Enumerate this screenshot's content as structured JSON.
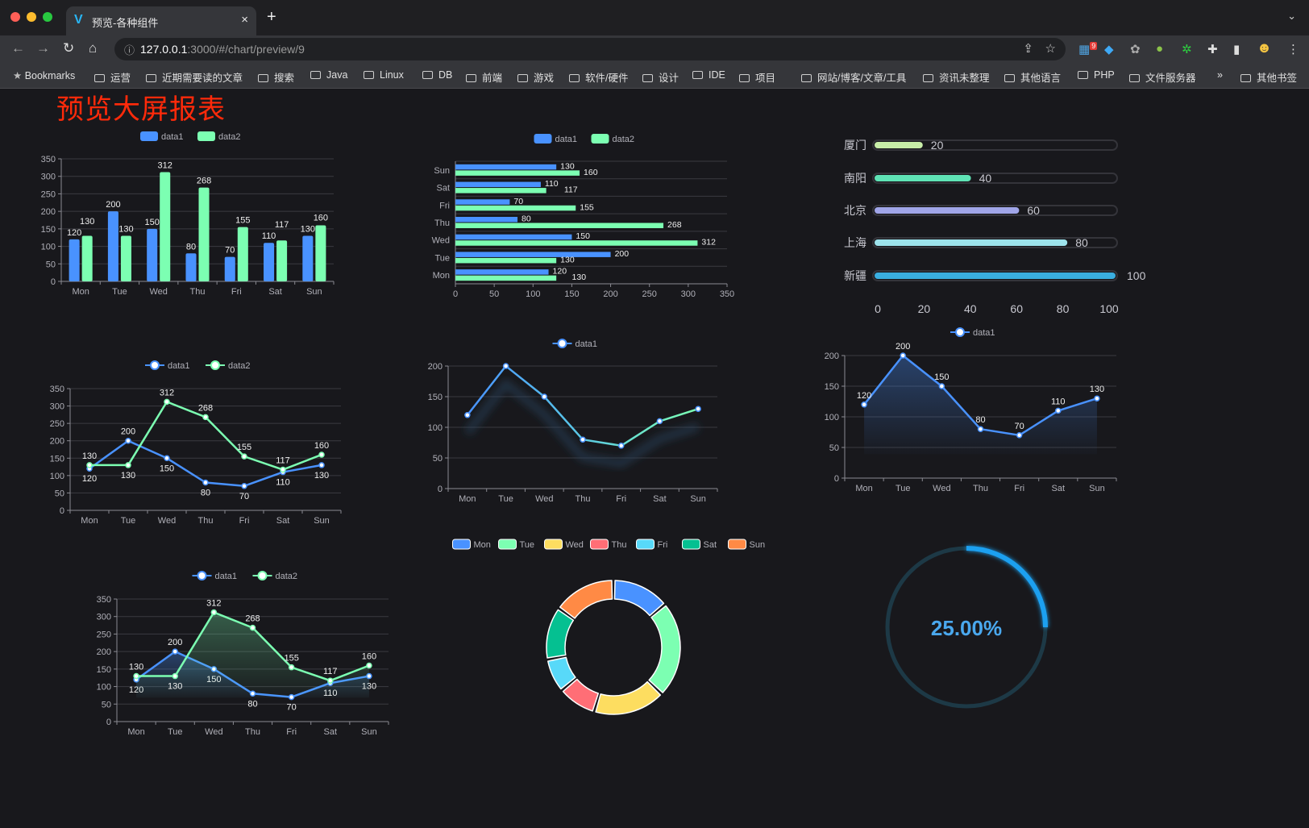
{
  "browser": {
    "tab_title": "预览-各种组件",
    "tab_close": "×",
    "new_tab": "+",
    "tab_menu": "⌄",
    "url_host": "127.0.0.1",
    "url_rest": ":3000/#/chart/preview/9",
    "extension_badge": "9",
    "bookmarks": [
      "Bookmarks",
      "运营",
      "近期需要读的文章",
      "搜索",
      "Java",
      "Linux",
      "DB",
      "前端",
      "游戏",
      "软件/硬件",
      "设计",
      "IDE",
      "项目",
      "网站/博客/文章/工具",
      "资讯未整理",
      "其他语言",
      "PHP",
      "文件服务器"
    ],
    "bookmarks_overflow": "»",
    "other_bookmarks": "其他书签"
  },
  "page": {
    "title": "预览大屏报表",
    "title_color": "#ff2a0a"
  },
  "colors": {
    "data1": "#4992ff",
    "data2": "#7cffb2",
    "grid": "#3a3a40",
    "axis_text": "#b0b0b8",
    "label": "#eeeeee"
  },
  "chart_data": [
    {
      "type": "bar",
      "legend": [
        "data1",
        "data2"
      ],
      "legend_position": "top",
      "categories": [
        "Mon",
        "Tue",
        "Wed",
        "Thu",
        "Fri",
        "Sat",
        "Sun"
      ],
      "series": [
        {
          "name": "data1",
          "values": [
            120,
            200,
            150,
            80,
            70,
            110,
            130
          ]
        },
        {
          "name": "data2",
          "values": [
            130,
            130,
            312,
            268,
            155,
            117,
            160
          ]
        }
      ],
      "ylim": [
        0,
        350
      ],
      "yticks": [
        "0",
        "50",
        "100",
        "150",
        "200",
        "250",
        "300",
        "350"
      ],
      "grid": true,
      "data_labels": true
    },
    {
      "type": "bar",
      "orientation": "horizontal",
      "legend": [
        "data1",
        "data2"
      ],
      "legend_position": "top",
      "categories": [
        "Mon",
        "Tue",
        "Wed",
        "Thu",
        "Fri",
        "Sat",
        "Sun"
      ],
      "series": [
        {
          "name": "data1",
          "values": [
            120,
            200,
            150,
            80,
            70,
            110,
            130
          ]
        },
        {
          "name": "data2",
          "values": [
            130,
            130,
            312,
            268,
            155,
            117,
            160
          ]
        }
      ],
      "xlim": [
        0,
        350
      ],
      "xticks": [
        "0",
        "50",
        "100",
        "150",
        "200",
        "250",
        "300",
        "350"
      ],
      "grid": true,
      "data_labels": true
    },
    {
      "type": "bar",
      "orientation": "horizontal",
      "style": "progress",
      "categories": [
        "厦门",
        "南阳",
        "北京",
        "上海",
        "新疆"
      ],
      "values": [
        20,
        40,
        60,
        80,
        100
      ],
      "colors": [
        "#c8eea8",
        "#5fe3b5",
        "#a0a5e8",
        "#9de3ec",
        "#3aaee0"
      ],
      "xlim": [
        0,
        100
      ],
      "xticks": [
        "0",
        "20",
        "40",
        "60",
        "80",
        "100"
      ]
    },
    {
      "type": "line",
      "legend": [
        "data1",
        "data2"
      ],
      "legend_position": "top",
      "categories": [
        "Mon",
        "Tue",
        "Wed",
        "Thu",
        "Fri",
        "Sat",
        "Sun"
      ],
      "series": [
        {
          "name": "data1",
          "values": [
            120,
            200,
            150,
            80,
            70,
            110,
            130
          ]
        },
        {
          "name": "data2",
          "values": [
            130,
            130,
            312,
            268,
            155,
            117,
            160
          ]
        }
      ],
      "ylim": [
        0,
        350
      ],
      "yticks": [
        "0",
        "50",
        "100",
        "150",
        "200",
        "250",
        "300",
        "350"
      ],
      "grid": true,
      "data_labels": true
    },
    {
      "type": "line",
      "legend": [
        "data1"
      ],
      "legend_position": "top",
      "categories": [
        "Mon",
        "Tue",
        "Wed",
        "Thu",
        "Fri",
        "Sat",
        "Sun"
      ],
      "series": [
        {
          "name": "data1",
          "values": [
            120,
            200,
            150,
            80,
            70,
            110,
            130
          ]
        }
      ],
      "gradient": [
        "#4992ff",
        "#7cffb2"
      ],
      "shadow": true,
      "ylim": [
        0,
        200
      ],
      "yticks": [
        "0",
        "50",
        "100",
        "150",
        "200"
      ],
      "grid": true,
      "data_labels": false
    },
    {
      "type": "area",
      "legend": [
        "data1"
      ],
      "legend_position": "top",
      "categories": [
        "Mon",
        "Tue",
        "Wed",
        "Thu",
        "Fri",
        "Sat",
        "Sun"
      ],
      "series": [
        {
          "name": "data1",
          "values": [
            120,
            200,
            150,
            80,
            70,
            110,
            130
          ]
        }
      ],
      "ylim": [
        0,
        200
      ],
      "yticks": [
        "0",
        "50",
        "100",
        "150",
        "200"
      ],
      "grid": true,
      "data_labels": true
    },
    {
      "type": "area",
      "legend": [
        "data1",
        "data2"
      ],
      "legend_position": "top",
      "categories": [
        "Mon",
        "Tue",
        "Wed",
        "Thu",
        "Fri",
        "Sat",
        "Sun"
      ],
      "series": [
        {
          "name": "data1",
          "values": [
            120,
            200,
            150,
            80,
            70,
            110,
            130
          ]
        },
        {
          "name": "data2",
          "values": [
            130,
            130,
            312,
            268,
            155,
            117,
            160
          ]
        }
      ],
      "ylim": [
        0,
        350
      ],
      "yticks": [
        "0",
        "50",
        "100",
        "150",
        "200",
        "250",
        "300",
        "350"
      ],
      "grid": true,
      "data_labels": true
    },
    {
      "type": "pie",
      "style": "donut",
      "legend": [
        "Mon",
        "Tue",
        "Wed",
        "Thu",
        "Fri",
        "Sat",
        "Sun"
      ],
      "legend_position": "top",
      "values": [
        120,
        200,
        150,
        80,
        70,
        110,
        130
      ],
      "colors": [
        "#4992ff",
        "#7cffb2",
        "#fddd60",
        "#ff6e76",
        "#58d9f9",
        "#05c091",
        "#ff8a45"
      ]
    },
    {
      "type": "gauge",
      "value": 25,
      "label": "25.00%",
      "color": "#1ea0f0"
    }
  ]
}
